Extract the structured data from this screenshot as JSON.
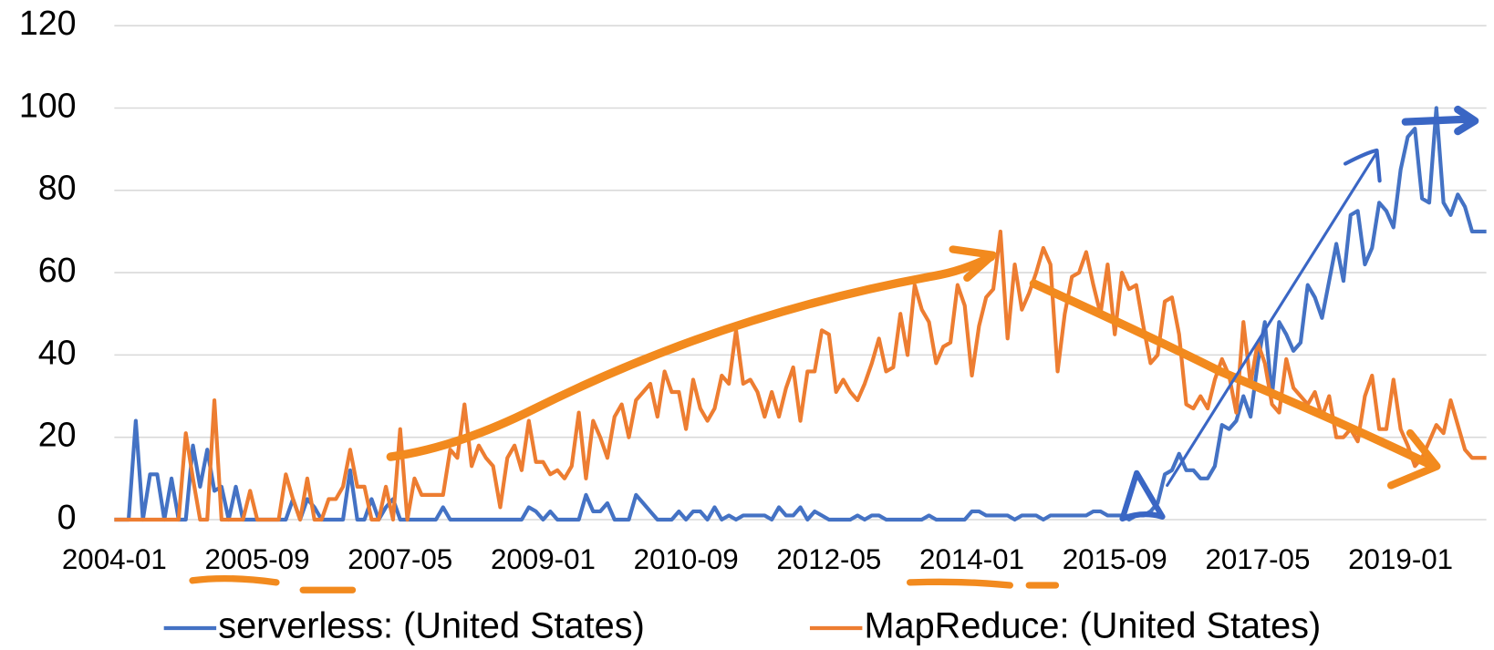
{
  "chart_data": {
    "type": "line",
    "categories": [
      "2004-01",
      null,
      null,
      null,
      null,
      null,
      null,
      null,
      null,
      null,
      null,
      null,
      null,
      null,
      null,
      null,
      null,
      null,
      null,
      null,
      "2005-09",
      null,
      null,
      null,
      null,
      null,
      null,
      null,
      null,
      null,
      null,
      null,
      null,
      null,
      null,
      null,
      null,
      null,
      null,
      null,
      "2007-05",
      null,
      null,
      null,
      null,
      null,
      null,
      null,
      null,
      null,
      null,
      null,
      null,
      null,
      null,
      null,
      null,
      null,
      null,
      null,
      "2009-01",
      null,
      null,
      null,
      null,
      null,
      null,
      null,
      null,
      null,
      null,
      null,
      null,
      null,
      null,
      null,
      null,
      null,
      null,
      null,
      "2010-09",
      null,
      null,
      null,
      null,
      null,
      null,
      null,
      null,
      null,
      null,
      null,
      null,
      null,
      null,
      null,
      null,
      null,
      null,
      null,
      "2012-05",
      null,
      null,
      null,
      null,
      null,
      null,
      null,
      null,
      null,
      null,
      null,
      null,
      null,
      null,
      null,
      null,
      null,
      null,
      null,
      "2014-01",
      null,
      null,
      null,
      null,
      null,
      null,
      null,
      null,
      null,
      null,
      null,
      null,
      null,
      null,
      null,
      null,
      null,
      null,
      null,
      "2015-09",
      null,
      null,
      null,
      null,
      null,
      null,
      null,
      null,
      null,
      null,
      null,
      null,
      null,
      null,
      null,
      null,
      null,
      null,
      null,
      "2017-05",
      null,
      null,
      null,
      null,
      null,
      null,
      null,
      null,
      null,
      null,
      null,
      null,
      null,
      null,
      null,
      null,
      null,
      null,
      null,
      "2019-01",
      null,
      null,
      null,
      null,
      null,
      null,
      null,
      null,
      null,
      null,
      null,
      null
    ],
    "series": [
      {
        "name": "serverless: (United States)",
        "color": "#4472c4",
        "values": [
          0,
          0,
          0,
          24,
          0,
          11,
          11,
          0,
          10,
          0,
          0,
          18,
          8,
          17,
          7,
          8,
          0,
          8,
          0,
          0,
          0,
          0,
          0,
          0,
          0,
          5,
          0,
          5,
          3,
          0,
          0,
          0,
          0,
          12,
          0,
          0,
          5,
          0,
          3,
          5,
          0,
          0,
          0,
          0,
          0,
          0,
          3,
          0,
          0,
          0,
          0,
          0,
          0,
          0,
          0,
          0,
          0,
          0,
          3,
          2,
          0,
          2,
          0,
          0,
          0,
          0,
          6,
          2,
          2,
          4,
          0,
          0,
          0,
          6,
          4,
          2,
          0,
          0,
          0,
          2,
          0,
          2,
          2,
          0,
          3,
          0,
          1,
          0,
          1,
          1,
          1,
          1,
          0,
          3,
          1,
          1,
          3,
          0,
          2,
          1,
          0,
          0,
          0,
          0,
          1,
          0,
          1,
          1,
          0,
          0,
          0,
          0,
          0,
          0,
          1,
          0,
          0,
          0,
          0,
          0,
          2,
          2,
          1,
          1,
          1,
          1,
          0,
          1,
          1,
          1,
          0,
          1,
          1,
          1,
          1,
          1,
          1,
          2,
          2,
          1,
          1,
          1,
          0,
          1,
          1,
          2,
          4,
          11,
          12,
          16,
          12,
          12,
          10,
          10,
          13,
          23,
          22,
          24,
          30,
          25,
          38,
          48,
          30,
          48,
          45,
          41,
          43,
          57,
          54,
          49,
          58,
          67,
          58,
          74,
          75,
          62,
          66,
          77,
          75,
          71,
          85,
          93,
          95,
          78,
          77,
          100,
          77,
          74,
          79,
          76,
          70,
          70,
          70
        ]
      },
      {
        "name": "MapReduce: (United States)",
        "color": "#ed7d31",
        "values": [
          0,
          0,
          0,
          0,
          0,
          0,
          0,
          0,
          0,
          0,
          21,
          10,
          0,
          0,
          29,
          0,
          0,
          0,
          0,
          7,
          0,
          0,
          0,
          0,
          11,
          5,
          0,
          10,
          0,
          0,
          5,
          5,
          8,
          17,
          8,
          8,
          0,
          0,
          8,
          0,
          22,
          0,
          10,
          6,
          6,
          6,
          6,
          17,
          15,
          28,
          13,
          18,
          15,
          13,
          3,
          15,
          18,
          12,
          24,
          14,
          14,
          11,
          12,
          10,
          13,
          26,
          10,
          24,
          20,
          15,
          25,
          28,
          20,
          29,
          31,
          33,
          25,
          36,
          31,
          31,
          22,
          34,
          27,
          24,
          27,
          35,
          33,
          46,
          33,
          34,
          31,
          25,
          31,
          25,
          32,
          37,
          24,
          36,
          36,
          46,
          45,
          31,
          34,
          31,
          29,
          33,
          38,
          44,
          36,
          37,
          50,
          40,
          57,
          51,
          48,
          38,
          42,
          43,
          57,
          52,
          35,
          47,
          54,
          56,
          70,
          44,
          62,
          51,
          55,
          60,
          66,
          62,
          36,
          50,
          59,
          60,
          65,
          57,
          50,
          62,
          45,
          60,
          56,
          57,
          47,
          38,
          40,
          53,
          54,
          45,
          28,
          27,
          30,
          27,
          34,
          39,
          35,
          26,
          48,
          33,
          43,
          38,
          28,
          26,
          39,
          32,
          30,
          28,
          31,
          25,
          30,
          20,
          20,
          22,
          19,
          30,
          35,
          22,
          22,
          34,
          22,
          18,
          13,
          15,
          19,
          23,
          21,
          29,
          23,
          17,
          15,
          15,
          15
        ]
      }
    ],
    "ylim": [
      0,
      120
    ],
    "yticks": [
      0,
      20,
      40,
      60,
      80,
      100,
      120
    ],
    "grid": true,
    "legend": "bottom"
  }
}
